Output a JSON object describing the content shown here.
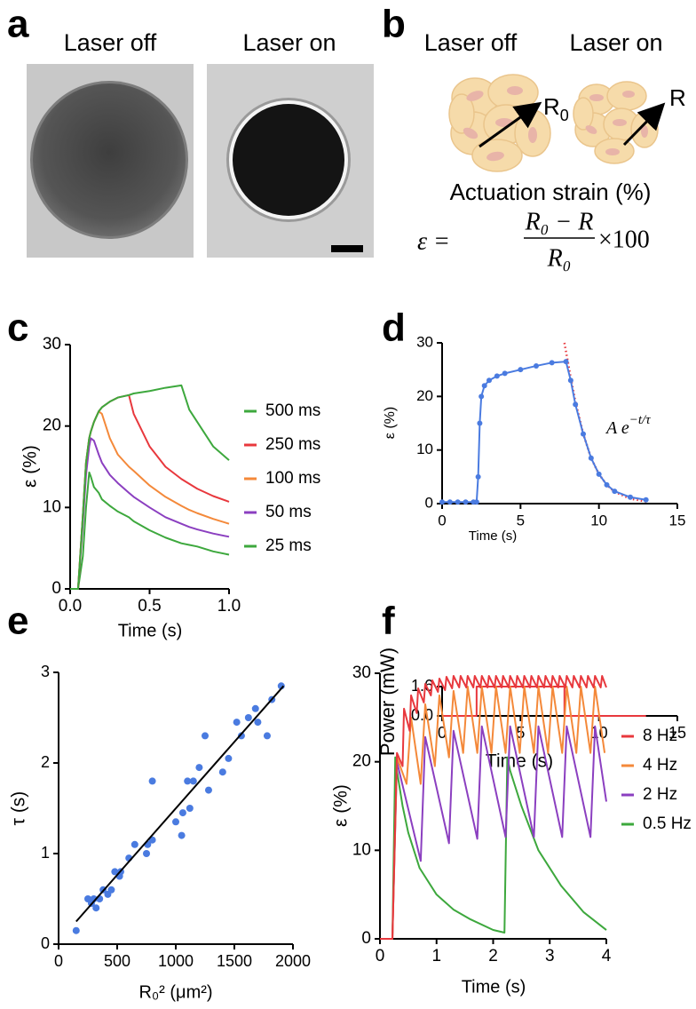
{
  "panel_letters": [
    "a",
    "b",
    "c",
    "d",
    "e",
    "f"
  ],
  "panel_a": {
    "left_title": "Laser off",
    "right_title": "Laser on"
  },
  "panel_b": {
    "left_title": "Laser off",
    "right_title": "Laser on",
    "left_label": "R",
    "left_label_sub": "0",
    "right_label": "R",
    "strain_title": "Actuation strain (%)",
    "equation": {
      "lhs": "ε =",
      "numerator": "R₀ − R",
      "denominator": "R₀",
      "factor": "×100"
    }
  },
  "chart_data": [
    {
      "type": "line",
      "xlabel": "Time (s)",
      "ylabel": "ε  (%)",
      "xlim": [
        0,
        1
      ],
      "ylim": [
        0,
        30
      ],
      "xticks": [
        {
          "value": 0,
          "label": "0.0"
        },
        0.5,
        {
          "value": 1,
          "label": "1.0"
        }
      ],
      "yticks": [
        0,
        10,
        20,
        30
      ],
      "legend": "right",
      "x": [
        0,
        0.05,
        0.08,
        0.1,
        0.12,
        0.13,
        0.15,
        0.18,
        0.2,
        0.25,
        0.3,
        0.37,
        0.4,
        0.5,
        0.6,
        0.7,
        0.75,
        0.8,
        0.9,
        1.0
      ],
      "series": [
        {
          "name": "500 ms",
          "color": "#3da83d",
          "style": "line",
          "values": [
            0,
            0,
            9,
            15.5,
            18.5,
            19.3,
            20.5,
            21.8,
            22.3,
            23,
            23.5,
            23.8,
            24,
            24.3,
            24.7,
            25,
            22,
            20.5,
            17.5,
            15.8
          ]
        },
        {
          "name": "250 ms",
          "color": "#e8383d",
          "style": "line",
          "values": [
            0,
            0,
            9,
            15.5,
            18.5,
            19.3,
            20.5,
            21.8,
            22.3,
            23,
            23.5,
            23.8,
            21.5,
            17.5,
            15,
            13.5,
            12.9,
            12.3,
            11.4,
            10.7
          ]
        },
        {
          "name": "100 ms",
          "color": "#f4893a",
          "style": "line",
          "values": [
            0,
            0,
            9,
            15.5,
            18.5,
            19.3,
            20.5,
            21.8,
            21.5,
            18.5,
            16.5,
            15,
            14.5,
            12.7,
            11.3,
            10.2,
            9.7,
            9.3,
            8.6,
            8.0
          ]
        },
        {
          "name": "50 ms",
          "color": "#8b3fc0",
          "style": "line",
          "values": [
            0,
            0,
            8,
            14,
            17.5,
            18.5,
            18.2,
            16.5,
            15.5,
            14,
            13,
            11.8,
            11.3,
            10,
            8.8,
            8,
            7.6,
            7.3,
            6.8,
            6.4
          ]
        },
        {
          "name": "25 ms",
          "color": "#3da83d",
          "style": "line",
          "values": [
            0,
            0,
            4,
            10,
            14.3,
            13.8,
            12.5,
            11.8,
            11,
            10.2,
            9.5,
            8.8,
            8.3,
            7.2,
            6.3,
            5.6,
            5.4,
            5.2,
            4.6,
            4.2
          ]
        }
      ]
    },
    {
      "type": "line",
      "xlabel": "Time (s)",
      "ylabel": "ε (%)",
      "xlim": [
        0,
        15
      ],
      "ylim": [
        0,
        30
      ],
      "xticks": [
        0,
        5,
        10,
        15
      ],
      "yticks": [
        0,
        10,
        20,
        30
      ],
      "annotation": {
        "base": "A e",
        "exponent": "−t/τ"
      },
      "series": [
        {
          "color": "#4a7be0",
          "style": "line+points",
          "x": [
            0,
            0.5,
            1,
            1.5,
            2,
            2.2,
            2.3,
            2.4,
            2.5,
            2.7,
            3,
            3.5,
            4,
            5,
            6,
            7,
            7.9,
            8.2,
            8.5,
            9,
            9.5,
            10,
            10.5,
            11,
            12,
            13
          ],
          "values": [
            0.3,
            0.3,
            0.3,
            0.3,
            0.3,
            0.3,
            5,
            15,
            20,
            22,
            23,
            23.8,
            24.3,
            25,
            25.7,
            26.3,
            26.5,
            23,
            18.5,
            13,
            8.5,
            5.5,
            3.5,
            2.3,
            1.2,
            0.7
          ]
        },
        {
          "color": "#e8383d",
          "style": "dotted",
          "x": [
            7.8,
            8.2,
            8.5,
            9,
            9.5,
            10,
            10.5,
            11,
            12,
            13
          ],
          "values": [
            30,
            23.5,
            19,
            13,
            8.5,
            5.5,
            3.5,
            2.2,
            0.9,
            0.4
          ]
        }
      ]
    },
    {
      "type": "line",
      "xlabel": "Time (s)",
      "ylabel": "Power (mW)",
      "xlim": [
        0,
        15
      ],
      "ylim": [
        0,
        1.6
      ],
      "xticks": [
        0,
        5,
        10,
        15
      ],
      "yticks": [
        {
          "value": 0,
          "label": "0.0"
        },
        1.6
      ],
      "series": [
        {
          "color": "#e8383d",
          "style": "line",
          "x": [
            0,
            2.2,
            2.2,
            7.8,
            7.8,
            13
          ],
          "values": [
            0,
            0,
            1.6,
            1.6,
            0,
            0
          ]
        }
      ]
    },
    {
      "type": "scatter",
      "xlabel": "R₀² (μm²)",
      "ylabel": "τ (s)",
      "xlim": [
        0,
        2000
      ],
      "ylim": [
        0,
        3
      ],
      "xticks": [
        0,
        500,
        1000,
        1500,
        2000
      ],
      "yticks": [
        0,
        1,
        2,
        3
      ],
      "series": [
        {
          "color": "#4a7be0",
          "style": "points",
          "x": [
            150,
            250,
            280,
            300,
            320,
            350,
            380,
            420,
            450,
            480,
            520,
            530,
            600,
            650,
            750,
            760,
            800,
            800,
            1000,
            1050,
            1060,
            1100,
            1120,
            1150,
            1200,
            1250,
            1280,
            1400,
            1450,
            1520,
            1560,
            1620,
            1680,
            1700,
            1780,
            1820,
            1900
          ],
          "values": [
            0.15,
            0.5,
            0.45,
            0.5,
            0.4,
            0.5,
            0.6,
            0.55,
            0.6,
            0.8,
            0.75,
            0.8,
            0.95,
            1.1,
            1.0,
            1.1,
            1.15,
            1.8,
            1.35,
            1.2,
            1.45,
            1.8,
            1.5,
            1.8,
            1.95,
            2.3,
            1.7,
            1.9,
            2.05,
            2.45,
            2.3,
            2.5,
            2.6,
            2.45,
            2.3,
            2.7,
            2.85
          ]
        },
        {
          "color": "#000000",
          "style": "line",
          "x": [
            150,
            1920
          ],
          "values": [
            0.25,
            2.85
          ]
        }
      ]
    },
    {
      "type": "line",
      "xlabel": "Time (s)",
      "ylabel": "ε (%)",
      "xlim": [
        0,
        4
      ],
      "ylim": [
        0,
        30
      ],
      "xticks": [
        0,
        1,
        2,
        3,
        4
      ],
      "yticks": [
        0,
        10,
        20,
        30
      ],
      "legend": "right",
      "series": [
        {
          "name": "8 Hz",
          "color": "#e8383d",
          "style": "line",
          "x": [
            0,
            0.22,
            0.3,
            0.4,
            0.425,
            0.525,
            0.55,
            0.65,
            0.675,
            0.775,
            0.8,
            0.9,
            0.925,
            1.025,
            1.05,
            1.15,
            1.175,
            1.275,
            1.3,
            1.4,
            1.425,
            1.525,
            1.55,
            1.65,
            1.675,
            1.775,
            1.8,
            1.9,
            1.925,
            2.025,
            2.05,
            2.15,
            2.175,
            2.275,
            2.3,
            2.4,
            2.425,
            2.525,
            2.55,
            2.65,
            2.675,
            2.775,
            2.8,
            2.9,
            2.925,
            3.025,
            3.05,
            3.15,
            3.175,
            3.275,
            3.3,
            3.4,
            3.425,
            3.525,
            3.55,
            3.65,
            3.675,
            3.775,
            3.8,
            3.9,
            3.925,
            4.0
          ],
          "values": [
            0,
            0,
            21,
            19.5,
            26,
            23.5,
            27.5,
            25.5,
            28.3,
            26.7,
            28.8,
            27.5,
            29.2,
            27.9,
            29.4,
            28.1,
            29.6,
            28.3,
            29.7,
            28.4,
            29.7,
            28.4,
            29.7,
            28.4,
            29.7,
            28.4,
            29.7,
            28.4,
            29.7,
            28.4,
            29.7,
            28.4,
            29.7,
            28.4,
            29.7,
            28.4,
            29.7,
            28.4,
            29.7,
            28.4,
            29.7,
            28.4,
            29.7,
            28.4,
            29.7,
            28.4,
            29.7,
            28.4,
            29.7,
            28.4,
            29.7,
            28.4,
            29.7,
            28.4,
            29.7,
            28.4,
            29.7,
            28.4,
            29.7,
            28.4,
            29.7,
            28.4
          ]
        },
        {
          "name": "4 Hz",
          "color": "#f4893a",
          "style": "line",
          "x": [
            0,
            0.22,
            0.3,
            0.47,
            0.55,
            0.72,
            0.8,
            0.97,
            1.05,
            1.22,
            1.3,
            1.47,
            1.55,
            1.72,
            1.8,
            1.97,
            2.05,
            2.22,
            2.3,
            2.47,
            2.55,
            2.72,
            2.8,
            2.97,
            3.05,
            3.22,
            3.3,
            3.47,
            3.55,
            3.72,
            3.8,
            3.97
          ],
          "values": [
            0,
            0,
            20.5,
            17.5,
            25,
            17.5,
            26.5,
            19.5,
            27.5,
            20.5,
            28,
            21,
            28.5,
            21,
            28.5,
            21,
            28.5,
            21,
            28.5,
            21,
            28.5,
            21,
            28.5,
            21,
            28.5,
            21,
            28.5,
            21,
            28.5,
            21,
            28.5,
            21
          ]
        },
        {
          "name": "2 Hz",
          "color": "#8b3fc0",
          "style": "line",
          "x": [
            0,
            0.22,
            0.3,
            0.72,
            0.8,
            1.22,
            1.3,
            1.72,
            1.8,
            2.22,
            2.3,
            2.72,
            2.8,
            3.22,
            3.3,
            3.72,
            3.8,
            4.0
          ],
          "values": [
            0,
            0,
            20,
            8.8,
            22.8,
            10.8,
            23.5,
            11.3,
            24,
            11.5,
            24,
            11.5,
            24,
            11.5,
            24,
            11.5,
            24,
            15.5
          ]
        },
        {
          "name": "0.5 Hz",
          "color": "#3da83d",
          "style": "line",
          "x": [
            0,
            0.22,
            0.27,
            0.3,
            0.4,
            0.5,
            0.7,
            1.0,
            1.3,
            1.6,
            2.0,
            2.2,
            2.25,
            2.3,
            2.5,
            2.8,
            3.2,
            3.6,
            4.0
          ],
          "values": [
            0,
            0,
            20.5,
            19,
            15,
            12,
            8,
            5,
            3.3,
            2.2,
            1,
            0.7,
            20.5,
            19,
            15,
            10,
            6,
            3,
            1
          ]
        }
      ]
    }
  ]
}
